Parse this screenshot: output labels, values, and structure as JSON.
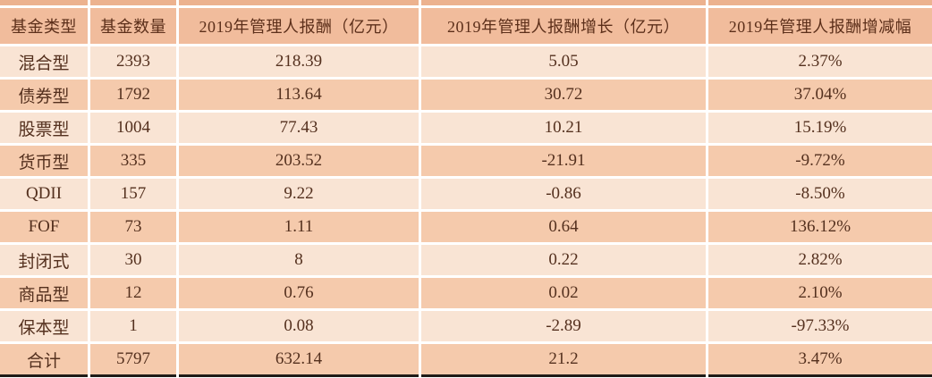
{
  "colors": {
    "header_bg": "#f1bc9c",
    "top_strip_bg": "#ecb28f",
    "row_dark_bg": "#f5caac",
    "row_light_bg": "#f9e4d4",
    "text": "#54301e",
    "bottom_border": "#1f1b17",
    "gap": "#ffffff"
  },
  "chart_data": {
    "type": "table",
    "columns": [
      "基金类型",
      "基金数量",
      "2019年管理人报酬（亿元）",
      "2019年管理人报酬增长（亿元）",
      "2019年管理人报酬增减幅"
    ],
    "rows": [
      [
        "混合型",
        "2393",
        "218.39",
        "5.05",
        "2.37%"
      ],
      [
        "债券型",
        "1792",
        "113.64",
        "30.72",
        "37.04%"
      ],
      [
        "股票型",
        "1004",
        "77.43",
        "10.21",
        "15.19%"
      ],
      [
        "货币型",
        "335",
        "203.52",
        "-21.91",
        "-9.72%"
      ],
      [
        "QDII",
        "157",
        "9.22",
        "-0.86",
        "-8.50%"
      ],
      [
        "FOF",
        "73",
        "1.11",
        "0.64",
        "136.12%"
      ],
      [
        "封闭式",
        "30",
        "8",
        "0.22",
        "2.82%"
      ],
      [
        "商品型",
        "12",
        "0.76",
        "0.02",
        "2.10%"
      ],
      [
        "保本型",
        "1",
        "0.08",
        "-2.89",
        "-97.33%"
      ],
      [
        "合计",
        "5797",
        "632.14",
        "21.2",
        "3.47%"
      ]
    ]
  }
}
